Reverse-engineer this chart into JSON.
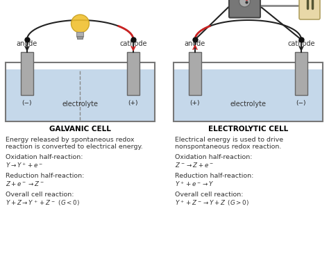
{
  "bg_color": "#ffffff",
  "liquid_color": "#c5d8ea",
  "electrode_color": "#aaaaaa",
  "tank_border_color": "#777777",
  "text_color": "#333333",
  "title_color": "#000000",
  "galvanic_title": "GALVANIC CELL",
  "electrolytic_title": "ELECTROLYTIC CELL",
  "galvanic_desc1": "Energy released by spontaneous redox",
  "galvanic_desc2": "reaction is converted to electrical energy.",
  "electrolytic_desc1": "Electrical energy is used to drive",
  "electrolytic_desc2": "nonspontaneous redox reaction.",
  "galvanic_ox_label": "Oxidation half-reaction:",
  "galvanic_ox_eq": "$Y \\rightarrow Y^+ + e^-$",
  "galvanic_red_label": "Reduction half-reaction:",
  "galvanic_red_eq": "$Z + e^- \\rightarrow Z^-$",
  "galvanic_overall_label": "Overall cell reaction:",
  "galvanic_overall_eq": "$Y + Z \\rightarrow Y^+ + Z^-\\;\\,(G < 0)$",
  "electrolytic_ox_label": "Oxidation half-reaction:",
  "electrolytic_ox_eq": "$Z^- \\rightarrow Z + e^-$",
  "electrolytic_red_label": "Reduction half-reaction:",
  "electrolytic_red_eq": "$Y^+ + e^- \\rightarrow Y$",
  "electrolytic_overall_label": "Overall cell reaction:",
  "electrolytic_overall_eq": "$Y^+ + Z^- \\rightarrow Y + Z\\;\\,(G > 0)$",
  "dashed_color": "#888888",
  "wire_color": "#222222",
  "red_wire_color": "#cc2222",
  "dot_color": "#111111",
  "elec_edge_color": "#666666",
  "charge_color": "#222222"
}
